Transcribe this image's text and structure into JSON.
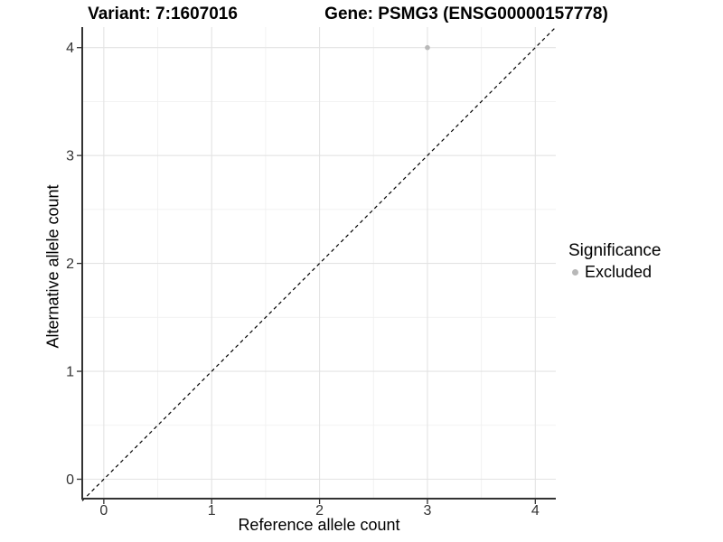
{
  "titles": {
    "variant": "Variant: 7:1607016",
    "gene": "Gene: PSMG3 (ENSG00000157778)"
  },
  "chart_data": {
    "type": "scatter",
    "xlabel": "Reference allele count",
    "ylabel": "Alternative allele count",
    "xlim": [
      -0.2,
      4.19
    ],
    "ylim": [
      -0.18,
      4.19
    ],
    "xticks": [
      0,
      1,
      2,
      3,
      4
    ],
    "yticks": [
      0,
      1,
      2,
      3,
      4
    ],
    "minor_ticks": [
      0.5,
      1.5,
      2.5,
      3.5
    ],
    "grid": true,
    "points": [
      {
        "x": 3,
        "y": 4,
        "series": "Excluded"
      }
    ],
    "reference_line": {
      "type": "identity",
      "from": [
        -0.2,
        -0.2
      ],
      "to": [
        4.19,
        4.19
      ],
      "style": "dashed",
      "color": "#000000"
    },
    "legend": {
      "title": "Significance",
      "position": "right",
      "items": [
        {
          "label": "Excluded",
          "color": "#b8b8b8",
          "marker": "circle"
        }
      ]
    },
    "colors": {
      "point": "#b8b8b8",
      "grid_major": "#e3e3e3",
      "grid_minor": "#f0f0f0",
      "axis": "#333333",
      "tick_label": "#333333",
      "background": "#ffffff"
    }
  }
}
